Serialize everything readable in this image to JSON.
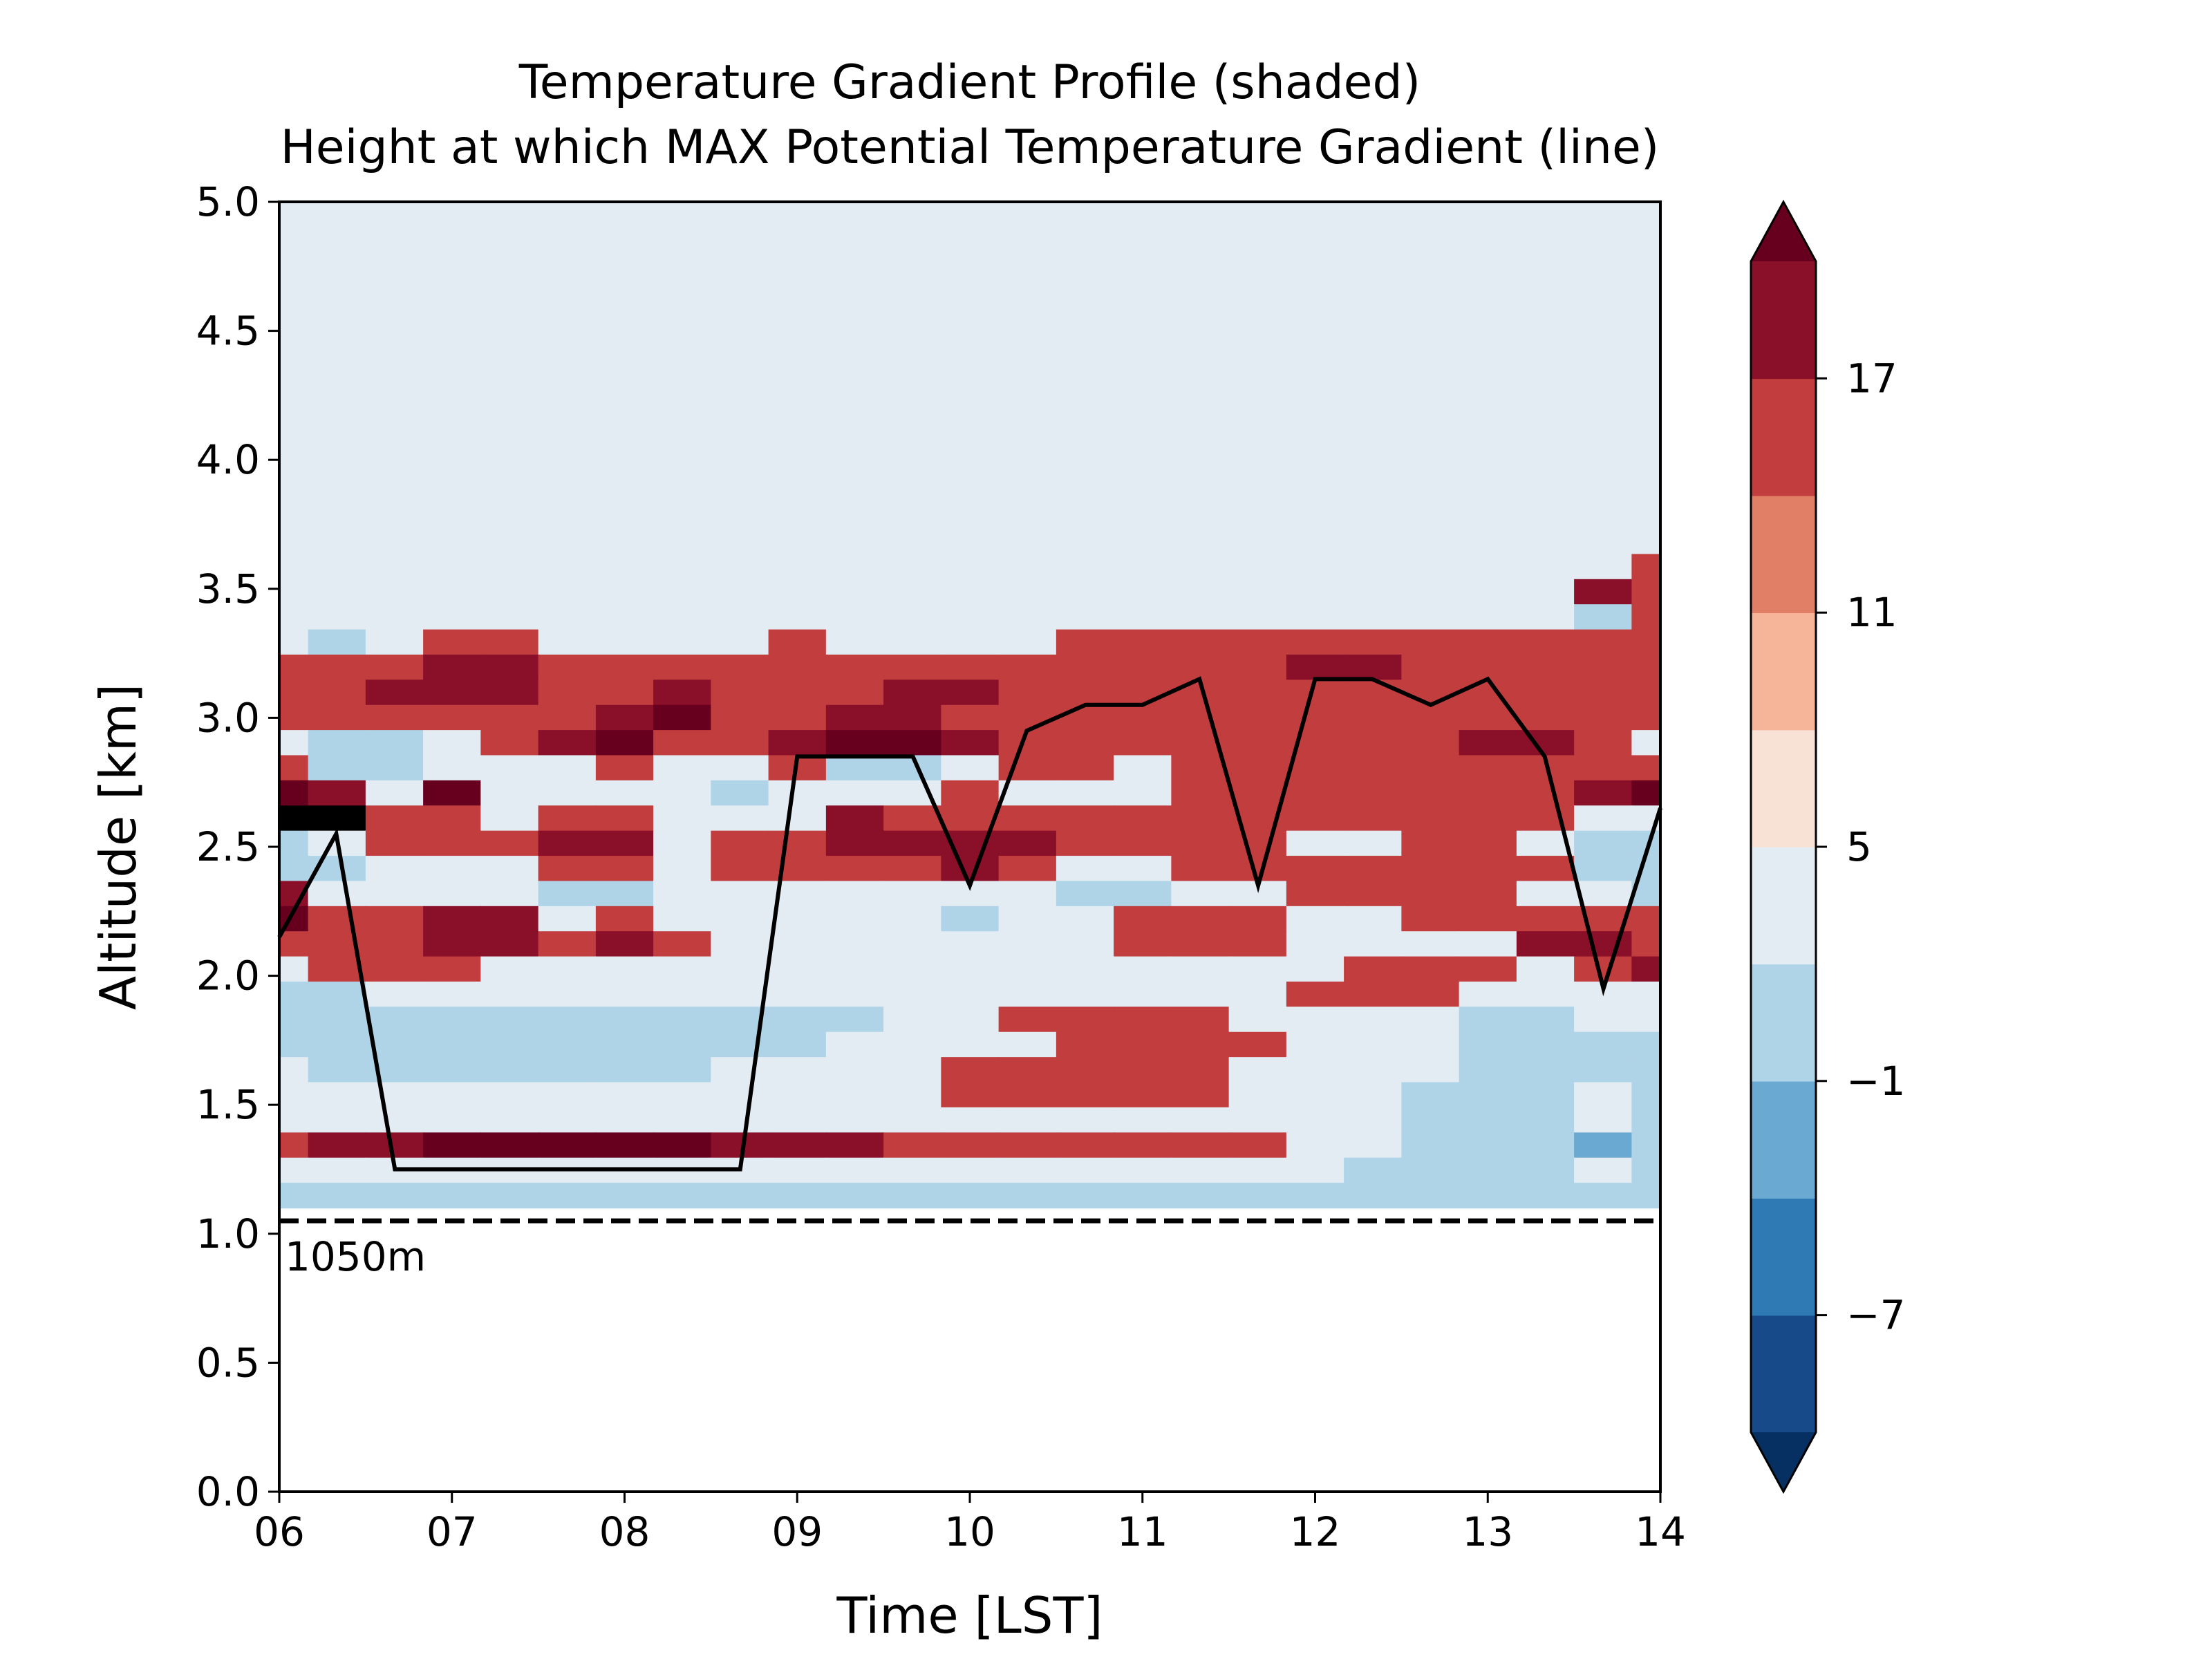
{
  "chart_data": {
    "type": "heatmap",
    "title": "Temperature Gradient Profile (shaded)",
    "subtitle": "Height at which MAX Potential Temperature Gradient (line)",
    "xlabel": "Time [LST]",
    "ylabel": "Altitude [km]",
    "xlim": [
      6,
      14
    ],
    "ylim": [
      0,
      5
    ],
    "x_ticks": [
      "06",
      "07",
      "08",
      "09",
      "10",
      "11",
      "12",
      "13",
      "14"
    ],
    "y_ticks": [
      "0.0",
      "0.5",
      "1.0",
      "1.5",
      "2.0",
      "2.5",
      "3.0",
      "3.5",
      "4.0",
      "4.5",
      "5.0"
    ],
    "grid": false,
    "data_bottom_km": 1.1,
    "reference_line": {
      "y": 1.05,
      "label": "1050m",
      "style": "dashed"
    },
    "colorbar": {
      "levels": [
        -10,
        -7,
        -4,
        -1,
        2,
        5,
        8,
        11,
        14,
        17,
        20
      ],
      "tick_labels": [
        "17",
        "11",
        "5",
        "−1",
        "−7"
      ],
      "extend": "both",
      "colors": [
        "#053061",
        "#174a88",
        "#2f79b5",
        "#6aa9d1",
        "#b0d4e7",
        "#e4ecf3",
        "#f8e1d5",
        "#f6b598",
        "#e17e66",
        "#c13d3e",
        "#8a0f28",
        "#67001f"
      ]
    },
    "series": [
      {
        "type": "line",
        "x": [
          6.0,
          6.33,
          6.67,
          7.0,
          7.33,
          7.67,
          8.0,
          8.33,
          8.67,
          9.0,
          9.33,
          9.67,
          10.0,
          10.33,
          10.67,
          11.0,
          11.33,
          11.67,
          12.0,
          12.33,
          12.67,
          13.0,
          13.33,
          13.67,
          14.0
        ],
        "y": [
          2.15,
          2.55,
          1.25,
          1.25,
          1.25,
          1.25,
          1.25,
          1.25,
          1.25,
          2.85,
          2.85,
          2.85,
          2.35,
          2.95,
          3.05,
          3.05,
          3.15,
          2.35,
          3.15,
          3.15,
          3.05,
          3.15,
          2.85,
          1.95,
          2.65
        ],
        "color": "#000000"
      }
    ],
    "shaded_values": [
      [
        2,
        2,
        2,
        2,
        2,
        2,
        2,
        2,
        2,
        2,
        2,
        2,
        2,
        2,
        2,
        2,
        2,
        2,
        2,
        2,
        2,
        2,
        2,
        2,
        2
      ],
      [
        2,
        2,
        2,
        2,
        2,
        2,
        2,
        2,
        2,
        2,
        2,
        2,
        2,
        2,
        2,
        2,
        2,
        2,
        2,
        2,
        2,
        2,
        2,
        2,
        2
      ],
      [
        2,
        2,
        2,
        2,
        2,
        2,
        2,
        2,
        2,
        2,
        2,
        2,
        2,
        2,
        2,
        2,
        2,
        2,
        2,
        2,
        2,
        2,
        2,
        2,
        2
      ],
      [
        2,
        2,
        2,
        2,
        2,
        2,
        2,
        2,
        2,
        2,
        2,
        2,
        2,
        2,
        2,
        2,
        2,
        2,
        2,
        2,
        2,
        2,
        2,
        2,
        2
      ],
      [
        2,
        2,
        2,
        2,
        2,
        2,
        2,
        2,
        2,
        2,
        2,
        2,
        2,
        2,
        2,
        2,
        2,
        2,
        2,
        2,
        2,
        2,
        2,
        2,
        2
      ],
      [
        2,
        2,
        2,
        2,
        2,
        2,
        2,
        2,
        2,
        2,
        2,
        2,
        2,
        2,
        2,
        2,
        2,
        2,
        2,
        2,
        2,
        2,
        2,
        2,
        2
      ],
      [
        2,
        2,
        2,
        2,
        2,
        2,
        2,
        2,
        2,
        2,
        2,
        2,
        2,
        2,
        2,
        2,
        2,
        2,
        2,
        2,
        2,
        2,
        2,
        2,
        2
      ],
      [
        2,
        2,
        2,
        2,
        2,
        2,
        2,
        2,
        2,
        2,
        2,
        2,
        2,
        2,
        2,
        2,
        2,
        2,
        2,
        2,
        2,
        2,
        2,
        2,
        2
      ],
      [
        2,
        2,
        2,
        2,
        2,
        2,
        2,
        2,
        2,
        2,
        2,
        2,
        2,
        2,
        2,
        2,
        2,
        2,
        2,
        2,
        2,
        2,
        2,
        2,
        2
      ],
      [
        2,
        2,
        2,
        2,
        2,
        2,
        2,
        2,
        2,
        2,
        2,
        2,
        2,
        2,
        2,
        2,
        2,
        2,
        2,
        2,
        2,
        2,
        2,
        2,
        2
      ],
      [
        2,
        2,
        2,
        2,
        2,
        2,
        2,
        2,
        2,
        2,
        2,
        2,
        2,
        2,
        2,
        2,
        2,
        2,
        2,
        2,
        2,
        2,
        2,
        2,
        2
      ],
      [
        2,
        2,
        2,
        2,
        2,
        2,
        2,
        2,
        2,
        2,
        2,
        2,
        2,
        2,
        2,
        2,
        2,
        2,
        2,
        2,
        2,
        2,
        2,
        2,
        2
      ],
      [
        2,
        2,
        2,
        2,
        2,
        2,
        2,
        2,
        2,
        2,
        2,
        2,
        2,
        2,
        2,
        2,
        2,
        2,
        2,
        2,
        2,
        2,
        2,
        2,
        2
      ],
      [
        2,
        2,
        2,
        2,
        2,
        2,
        2,
        2,
        2,
        2,
        2,
        2,
        2,
        2,
        2,
        2,
        2,
        2,
        2,
        2,
        2,
        2,
        2,
        2,
        2
      ],
      [
        2,
        2,
        2,
        2,
        2,
        2,
        2,
        2,
        2,
        2,
        2,
        2,
        2,
        2,
        2,
        2,
        2,
        2,
        2,
        2,
        2,
        2,
        2,
        2,
        6
      ],
      [
        2,
        2,
        2,
        2,
        2,
        2,
        2,
        2,
        2,
        2,
        2,
        2,
        2,
        2,
        2,
        2,
        2,
        2,
        2,
        2,
        2,
        2,
        2,
        7,
        6
      ],
      [
        2,
        2,
        2,
        2,
        2,
        2,
        2,
        2,
        2,
        2,
        2,
        2,
        2,
        2,
        2,
        2,
        2,
        2,
        2,
        2,
        2,
        2,
        2,
        1,
        6
      ],
      [
        2,
        1,
        2,
        6,
        6,
        2,
        2,
        2,
        2,
        6,
        2,
        2,
        2,
        2,
        6,
        6,
        6,
        6,
        6,
        6,
        6,
        6,
        6,
        6,
        6
      ],
      [
        6,
        6,
        6,
        7,
        7,
        6,
        6,
        6,
        6,
        6,
        6,
        6,
        6,
        6,
        6,
        6,
        6,
        6,
        7,
        7,
        6,
        6,
        6,
        6,
        6
      ],
      [
        6,
        6,
        7,
        7,
        7,
        6,
        6,
        7,
        6,
        6,
        6,
        7,
        7,
        6,
        6,
        6,
        6,
        6,
        6,
        6,
        6,
        6,
        6,
        6,
        6
      ],
      [
        6,
        6,
        6,
        6,
        6,
        6,
        7,
        8,
        6,
        6,
        7,
        7,
        6,
        6,
        6,
        6,
        6,
        6,
        6,
        6,
        6,
        6,
        6,
        6,
        6
      ],
      [
        2,
        1,
        1,
        2,
        6,
        7,
        8,
        6,
        6,
        7,
        8,
        8,
        7,
        6,
        6,
        6,
        6,
        6,
        6,
        6,
        6,
        7,
        7,
        6,
        2
      ],
      [
        6,
        1,
        1,
        2,
        2,
        2,
        6,
        2,
        2,
        6,
        1,
        1,
        2,
        6,
        6,
        2,
        6,
        6,
        6,
        6,
        6,
        6,
        6,
        6,
        6
      ],
      [
        8,
        7,
        2,
        8,
        2,
        2,
        2,
        2,
        1,
        2,
        2,
        2,
        6,
        2,
        2,
        2,
        6,
        6,
        6,
        6,
        6,
        6,
        6,
        7,
        8
      ],
      [
        9,
        9,
        6,
        6,
        2,
        6,
        6,
        2,
        2,
        2,
        7,
        6,
        6,
        6,
        6,
        6,
        6,
        6,
        6,
        6,
        6,
        6,
        6,
        2,
        2
      ],
      [
        1,
        2,
        6,
        6,
        6,
        7,
        7,
        2,
        6,
        6,
        7,
        7,
        7,
        7,
        6,
        6,
        6,
        6,
        2,
        2,
        6,
        6,
        2,
        1,
        1
      ],
      [
        1,
        1,
        2,
        2,
        2,
        6,
        6,
        2,
        6,
        6,
        6,
        6,
        7,
        6,
        2,
        2,
        6,
        6,
        6,
        6,
        6,
        6,
        6,
        1,
        1
      ],
      [
        7,
        2,
        2,
        2,
        2,
        1,
        1,
        2,
        2,
        2,
        2,
        2,
        2,
        2,
        1,
        1,
        2,
        2,
        6,
        6,
        6,
        6,
        2,
        2,
        1
      ],
      [
        8,
        6,
        6,
        7,
        7,
        2,
        6,
        2,
        2,
        2,
        2,
        2,
        1,
        2,
        2,
        6,
        6,
        6,
        2,
        2,
        6,
        6,
        6,
        6,
        6
      ],
      [
        6,
        6,
        6,
        7,
        7,
        6,
        7,
        6,
        2,
        2,
        2,
        2,
        2,
        2,
        2,
        6,
        6,
        6,
        2,
        2,
        2,
        2,
        7,
        7,
        6
      ],
      [
        2,
        6,
        6,
        6,
        2,
        2,
        2,
        2,
        2,
        2,
        2,
        2,
        2,
        2,
        2,
        2,
        2,
        2,
        2,
        6,
        6,
        6,
        2,
        6,
        7
      ],
      [
        1,
        1,
        2,
        2,
        2,
        2,
        2,
        2,
        2,
        2,
        2,
        2,
        2,
        2,
        2,
        2,
        2,
        2,
        6,
        6,
        6,
        2,
        2,
        2,
        2
      ],
      [
        1,
        1,
        1,
        1,
        1,
        1,
        1,
        1,
        1,
        1,
        1,
        2,
        2,
        6,
        6,
        6,
        6,
        2,
        2,
        2,
        2,
        1,
        1,
        2,
        2
      ],
      [
        1,
        1,
        1,
        1,
        1,
        1,
        1,
        1,
        1,
        1,
        2,
        2,
        2,
        2,
        6,
        6,
        6,
        6,
        2,
        2,
        2,
        1,
        1,
        1,
        1
      ],
      [
        2,
        1,
        1,
        1,
        1,
        1,
        1,
        1,
        2,
        2,
        2,
        2,
        6,
        6,
        6,
        6,
        6,
        2,
        2,
        2,
        2,
        1,
        1,
        1,
        1
      ],
      [
        2,
        2,
        2,
        2,
        2,
        2,
        2,
        2,
        2,
        2,
        2,
        2,
        6,
        6,
        6,
        6,
        6,
        2,
        2,
        2,
        1,
        1,
        1,
        2,
        1
      ],
      [
        2,
        2,
        2,
        2,
        2,
        2,
        2,
        2,
        2,
        2,
        2,
        2,
        2,
        2,
        2,
        2,
        2,
        2,
        2,
        2,
        1,
        1,
        1,
        2,
        1
      ],
      [
        6,
        7,
        7,
        8,
        8,
        8,
        8,
        8,
        7,
        7,
        7,
        6,
        6,
        6,
        6,
        6,
        6,
        6,
        2,
        2,
        1,
        1,
        1,
        0,
        1
      ],
      [
        2,
        2,
        2,
        2,
        2,
        2,
        2,
        2,
        2,
        2,
        2,
        2,
        2,
        2,
        2,
        2,
        2,
        2,
        2,
        1,
        1,
        1,
        1,
        2,
        1
      ],
      [
        1,
        1,
        1,
        1,
        1,
        1,
        1,
        1,
        1,
        1,
        1,
        1,
        1,
        1,
        1,
        1,
        1,
        1,
        1,
        1,
        1,
        1,
        1,
        1,
        1
      ]
    ]
  }
}
